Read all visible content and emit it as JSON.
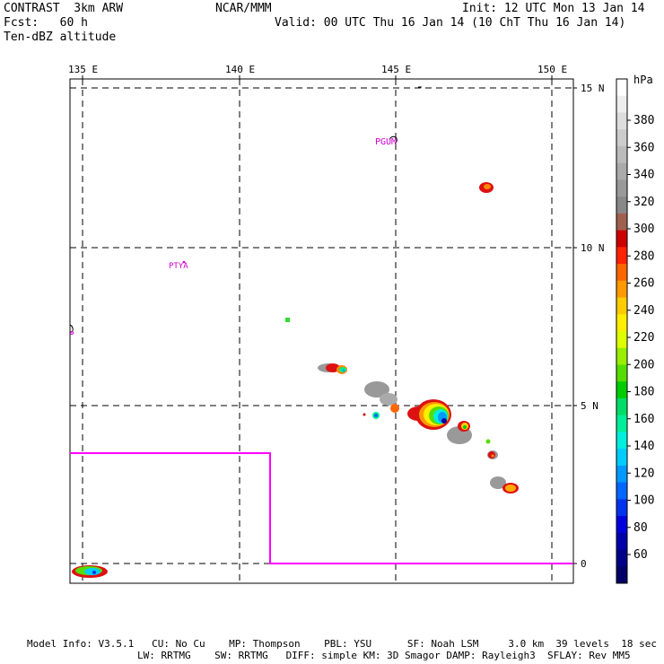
{
  "header": {
    "line1_left": "CONTRAST  3km ARW",
    "line1_center": "NCAR/MMM",
    "line1_right": "Init: 12 UTC Mon 13 Jan 14",
    "line2_left": "Fcst:   60 h",
    "line2_right": "Valid: 00 UTC Thu 16 Jan 14 (10 ChT Thu 16 Jan 14)",
    "line3_left": "Ten-dBZ altitude"
  },
  "map": {
    "lon_labels": [
      "135 E",
      "140 E",
      "145 E",
      "150 E"
    ],
    "lat_labels": [
      "15 N",
      "10 N",
      "5 N",
      "0"
    ],
    "stations": [
      "PGUM",
      "PTYA"
    ],
    "boundary_color": "#ff00ff"
  },
  "colorbar": {
    "unit": "hPa",
    "labels": [
      "380",
      "360",
      "340",
      "320",
      "300",
      "280",
      "260",
      "240",
      "220",
      "200",
      "180",
      "160",
      "140",
      "120",
      "100",
      "80",
      "60"
    ],
    "colors": [
      "#ffffff",
      "#eeeeee",
      "#dddddd",
      "#cccccc",
      "#bbbbbb",
      "#aaaaaa",
      "#999999",
      "#888888",
      "#a06050",
      "#cc0000",
      "#ff2200",
      "#ff6600",
      "#ff9900",
      "#ffcc00",
      "#ffee00",
      "#ddff00",
      "#99ee00",
      "#55dd00",
      "#00cc00",
      "#00dd66",
      "#00ee99",
      "#00eedd",
      "#00ccff",
      "#0099ff",
      "#0066ff",
      "#0033ee",
      "#0000dd",
      "#0000aa",
      "#000088",
      "#000066"
    ]
  },
  "footer": {
    "line1": "Model Info: V3.5.1   CU: No Cu    MP: Thompson    PBL: YSU      SF: Noah LSM     3.0 km  39 levels  18 sec",
    "line2": "LW: RRTMG    SW: RRTMG   DIFF: simple KM: 3D Smagor DAMP: Rayleigh3  SFLAY: Rev MM5"
  }
}
